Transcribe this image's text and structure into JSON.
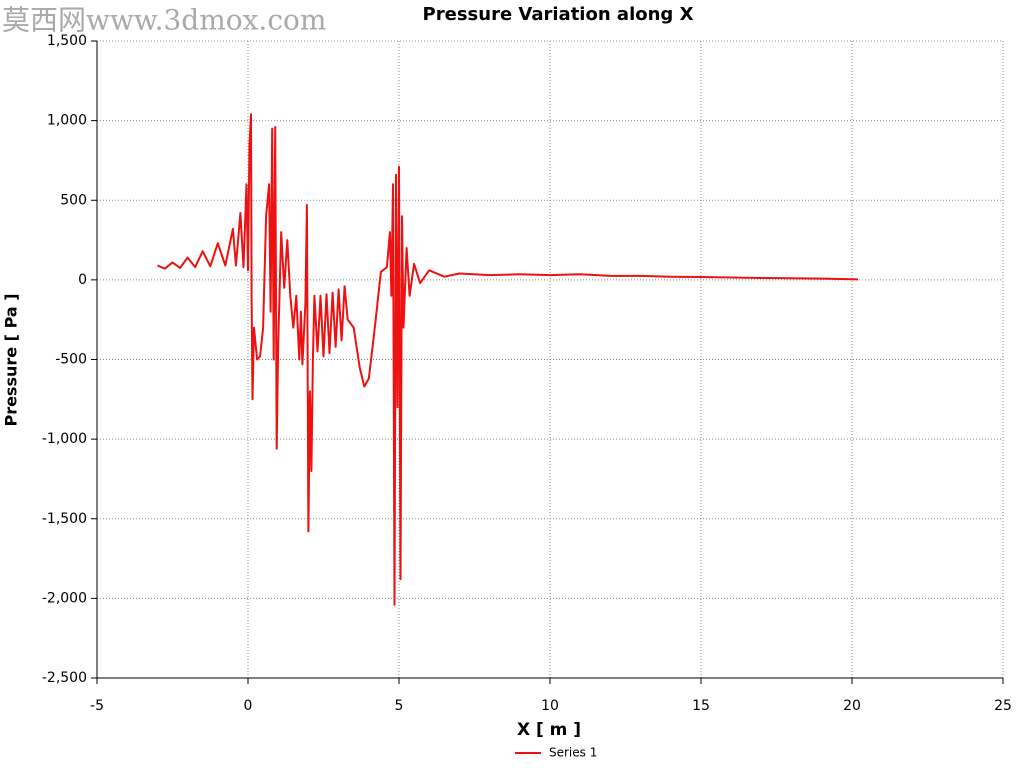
{
  "watermark": "莫西网www.3dmox.com",
  "chart_data": {
    "type": "line",
    "title": "Pressure Variation along X",
    "x_label": "X [ m ]",
    "y_label": "Pressure [ Pa ]",
    "xlim": [
      -5,
      25
    ],
    "xticks": [
      -5,
      0,
      5,
      10,
      15,
      20,
      25
    ],
    "ylim": [
      -2500,
      1500
    ],
    "yticks": [
      {
        "value": -2500,
        "label": "-2,500"
      },
      {
        "value": -2000,
        "label": "-2,000"
      },
      {
        "value": -1500,
        "label": "-1,500"
      },
      {
        "value": -1000,
        "label": "-1,000"
      },
      -500,
      0,
      500,
      {
        "value": 1000,
        "label": "1,000"
      },
      {
        "value": 1500,
        "label": "1,500"
      }
    ],
    "grid": true,
    "legend": "bottom",
    "x": [
      -3,
      -2.75,
      -2.5,
      -2.25,
      -2,
      -1.75,
      -1.5,
      -1.25,
      -1,
      -0.75,
      -0.5,
      -0.4,
      -0.25,
      -0.15,
      -0.05,
      0,
      0.05,
      0.1,
      0.12,
      0.15,
      0.2,
      0.3,
      0.4,
      0.5,
      0.6,
      0.7,
      0.75,
      0.8,
      0.85,
      0.9,
      0.95,
      1.0,
      1.1,
      1.2,
      1.3,
      1.4,
      1.5,
      1.6,
      1.7,
      1.75,
      1.8,
      1.9,
      1.95,
      2.0,
      2.05,
      2.1,
      2.15,
      2.2,
      2.3,
      2.4,
      2.5,
      2.6,
      2.7,
      2.8,
      2.9,
      3.0,
      3.1,
      3.2,
      3.3,
      3.5,
      3.7,
      3.85,
      4.0,
      4.2,
      4.4,
      4.6,
      4.7,
      4.75,
      4.8,
      4.85,
      4.9,
      4.95,
      5.0,
      5.05,
      5.1,
      5.15,
      5.25,
      5.35,
      5.5,
      5.7,
      6,
      6.5,
      7,
      8,
      9,
      10,
      11,
      12,
      13,
      14,
      15,
      16,
      17,
      18,
      19,
      20.2
    ],
    "series": [
      {
        "name": "Series 1",
        "color": "#ee1111",
        "values": [
          90,
          70,
          110,
          75,
          140,
          80,
          180,
          85,
          230,
          90,
          320,
          90,
          420,
          80,
          600,
          60,
          850,
          1040,
          -100,
          -750,
          -300,
          -500,
          -480,
          -300,
          400,
          600,
          -200,
          950,
          -500,
          960,
          -1060,
          -400,
          300,
          -50,
          250,
          -100,
          -300,
          -100,
          -500,
          -200,
          -530,
          -150,
          470,
          -1580,
          -700,
          -1200,
          -500,
          -100,
          -450,
          -100,
          -480,
          -90,
          -460,
          -80,
          -420,
          -60,
          -380,
          -40,
          -250,
          -300,
          -550,
          -670,
          -620,
          -300,
          50,
          80,
          300,
          -100,
          600,
          -2040,
          660,
          -800,
          710,
          -1880,
          400,
          -300,
          200,
          -100,
          100,
          -20,
          60,
          20,
          40,
          30,
          35,
          30,
          35,
          25,
          25,
          20,
          18,
          15,
          12,
          10,
          8,
          3
        ]
      }
    ]
  }
}
